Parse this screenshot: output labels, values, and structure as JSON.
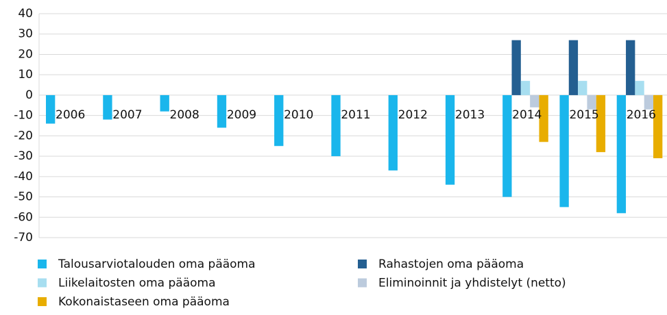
{
  "chart_data": {
    "type": "bar",
    "categories": [
      "2006",
      "2007",
      "2008",
      "2009",
      "2010",
      "2011",
      "2012",
      "2013",
      "2014",
      "2015",
      "2016"
    ],
    "series": [
      {
        "name": "Talousarviotalouden oma pääoma",
        "color": "#1ab6ec",
        "values": [
          -14,
          -12,
          -8,
          -16,
          -25,
          -30,
          -37,
          -44,
          -50,
          -55,
          -58
        ]
      },
      {
        "name": "Rahastojen oma pääoma",
        "color": "#245f91",
        "values": [
          null,
          null,
          null,
          null,
          null,
          null,
          null,
          null,
          27,
          27,
          27
        ]
      },
      {
        "name": "Liikelaitosten oma pääoma",
        "color": "#a7def0",
        "values": [
          null,
          null,
          null,
          null,
          null,
          null,
          null,
          null,
          7,
          7,
          7
        ]
      },
      {
        "name": "Eliminoinnit ja yhdistelyt (netto)",
        "color": "#bccbdd",
        "values": [
          null,
          null,
          null,
          null,
          null,
          null,
          null,
          null,
          -6,
          -7,
          -7
        ]
      },
      {
        "name": "Kokonaistaseen oma pääoma",
        "color": "#e8ad00",
        "values": [
          null,
          null,
          null,
          null,
          null,
          null,
          null,
          null,
          -23,
          -28,
          -31
        ]
      }
    ],
    "ylim": [
      -70,
      40
    ],
    "yticks": [
      -70,
      -60,
      -50,
      -40,
      -30,
      -20,
      -10,
      0,
      10,
      20,
      30,
      40
    ],
    "grid": true
  }
}
